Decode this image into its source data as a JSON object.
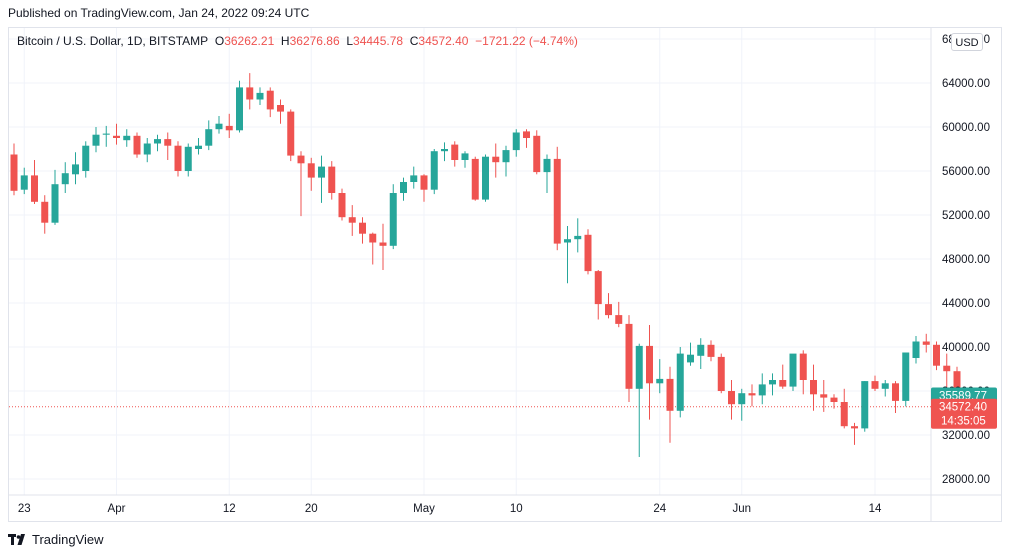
{
  "header": {
    "published": "Published on TradingView.com, Jan 24, 2022 09:24 UTC"
  },
  "legend": {
    "symbol": "Bitcoin / U.S. Dollar, 1D, BITSTAMP",
    "o_label": "O",
    "o": "36262.21",
    "h_label": "H",
    "h": "36276.86",
    "l_label": "L",
    "l": "34445.78",
    "c_label": "C",
    "c": "34572.40",
    "change": "−1721.22 (−4.74%)"
  },
  "currency_button": "USD",
  "footer": {
    "brand": "TradingView"
  },
  "colors": {
    "up": "#26a69a",
    "down": "#ef5350",
    "grid": "#f0f3fa",
    "price_line": "#ef5350"
  },
  "chart_data": {
    "type": "candlestick",
    "ylim": [
      25600,
      68000
    ],
    "y_ticks": [
      28000,
      32000,
      36000,
      40000,
      44000,
      48000,
      52000,
      56000,
      60000,
      64000,
      68000
    ],
    "y_tick_labels": [
      "28000.00",
      "32000.00",
      "36000.00",
      "40000.00",
      "44000.00",
      "48000.00",
      "52000.00",
      "56000.00",
      "60000.00",
      "64000.00",
      "68000.00"
    ],
    "x_tick_labels": [
      {
        "label": "23",
        "index": 1
      },
      {
        "label": "Apr",
        "index": 10
      },
      {
        "label": "12",
        "index": 21
      },
      {
        "label": "20",
        "index": 29
      },
      {
        "label": "May",
        "index": 40
      },
      {
        "label": "10",
        "index": 49
      },
      {
        "label": "24",
        "index": 63
      },
      {
        "label": "Jun",
        "index": 71
      },
      {
        "label": "14",
        "index": 84
      }
    ],
    "price_tags": [
      {
        "value": 35589.77,
        "label": "35589.77",
        "color": "#26a69a"
      },
      {
        "value": 34572.4,
        "label": "34572.40",
        "sub": "14:35:05",
        "color": "#ef5350"
      }
    ],
    "candles": [
      {
        "o": 57500,
        "h": 58500,
        "l": 53800,
        "c": 54200
      },
      {
        "o": 54300,
        "h": 56300,
        "l": 53900,
        "c": 55600
      },
      {
        "o": 55600,
        "h": 57000,
        "l": 53000,
        "c": 53200
      },
      {
        "o": 53200,
        "h": 53800,
        "l": 50300,
        "c": 51300
      },
      {
        "o": 51300,
        "h": 56100,
        "l": 51100,
        "c": 54800
      },
      {
        "o": 54800,
        "h": 56800,
        "l": 54000,
        "c": 55800
      },
      {
        "o": 55700,
        "h": 57700,
        "l": 54800,
        "c": 56600
      },
      {
        "o": 56000,
        "h": 58700,
        "l": 55400,
        "c": 58300
      },
      {
        "o": 58300,
        "h": 60000,
        "l": 57700,
        "c": 59300
      },
      {
        "o": 59300,
        "h": 60100,
        "l": 58200,
        "c": 59400
      },
      {
        "o": 59200,
        "h": 60300,
        "l": 58400,
        "c": 59000
      },
      {
        "o": 58800,
        "h": 59800,
        "l": 58200,
        "c": 59200
      },
      {
        "o": 59200,
        "h": 59500,
        "l": 57200,
        "c": 57500
      },
      {
        "o": 57500,
        "h": 59000,
        "l": 56800,
        "c": 58500
      },
      {
        "o": 58500,
        "h": 59300,
        "l": 57800,
        "c": 58900
      },
      {
        "o": 58900,
        "h": 59500,
        "l": 57000,
        "c": 58300
      },
      {
        "o": 58300,
        "h": 58700,
        "l": 55500,
        "c": 56000
      },
      {
        "o": 56000,
        "h": 58500,
        "l": 55500,
        "c": 58200
      },
      {
        "o": 58000,
        "h": 59000,
        "l": 57500,
        "c": 58300
      },
      {
        "o": 58300,
        "h": 60600,
        "l": 57900,
        "c": 59800
      },
      {
        "o": 59800,
        "h": 61000,
        "l": 59400,
        "c": 60300
      },
      {
        "o": 60100,
        "h": 61200,
        "l": 59000,
        "c": 59700
      },
      {
        "o": 59700,
        "h": 64200,
        "l": 59500,
        "c": 63600
      },
      {
        "o": 63600,
        "h": 64900,
        "l": 61600,
        "c": 62500
      },
      {
        "o": 62500,
        "h": 63600,
        "l": 62000,
        "c": 63100
      },
      {
        "o": 63300,
        "h": 63600,
        "l": 60900,
        "c": 61600
      },
      {
        "o": 62000,
        "h": 62500,
        "l": 60300,
        "c": 61400
      },
      {
        "o": 61400,
        "h": 61600,
        "l": 56900,
        "c": 57400
      },
      {
        "o": 57400,
        "h": 57800,
        "l": 51900,
        "c": 56700
      },
      {
        "o": 56700,
        "h": 57200,
        "l": 54200,
        "c": 55400
      },
      {
        "o": 55400,
        "h": 57400,
        "l": 53100,
        "c": 56400
      },
      {
        "o": 56400,
        "h": 56900,
        "l": 53400,
        "c": 54000
      },
      {
        "o": 54000,
        "h": 54400,
        "l": 51500,
        "c": 51800
      },
      {
        "o": 51800,
        "h": 52900,
        "l": 50100,
        "c": 51300
      },
      {
        "o": 51300,
        "h": 51800,
        "l": 49400,
        "c": 50300
      },
      {
        "o": 50300,
        "h": 50400,
        "l": 47500,
        "c": 49500
      },
      {
        "o": 49500,
        "h": 51200,
        "l": 47000,
        "c": 49200
      },
      {
        "o": 49200,
        "h": 54800,
        "l": 48900,
        "c": 54000
      },
      {
        "o": 54000,
        "h": 55400,
        "l": 53300,
        "c": 55000
      },
      {
        "o": 55000,
        "h": 56400,
        "l": 54400,
        "c": 55600
      },
      {
        "o": 55600,
        "h": 55700,
        "l": 53200,
        "c": 54300
      },
      {
        "o": 54300,
        "h": 58000,
        "l": 53900,
        "c": 57800
      },
      {
        "o": 57800,
        "h": 58600,
        "l": 56900,
        "c": 58000
      },
      {
        "o": 58400,
        "h": 58700,
        "l": 56400,
        "c": 57000
      },
      {
        "o": 57000,
        "h": 57800,
        "l": 56300,
        "c": 57600
      },
      {
        "o": 57100,
        "h": 57300,
        "l": 53300,
        "c": 53400
      },
      {
        "o": 53400,
        "h": 57500,
        "l": 53200,
        "c": 57300
      },
      {
        "o": 57300,
        "h": 58500,
        "l": 55400,
        "c": 56800
      },
      {
        "o": 56800,
        "h": 58300,
        "l": 55500,
        "c": 57900
      },
      {
        "o": 57900,
        "h": 59800,
        "l": 57300,
        "c": 59500
      },
      {
        "o": 59600,
        "h": 59800,
        "l": 58100,
        "c": 59000
      },
      {
        "o": 59200,
        "h": 59700,
        "l": 55700,
        "c": 55900
      },
      {
        "o": 55900,
        "h": 57500,
        "l": 54000,
        "c": 57100
      },
      {
        "o": 57100,
        "h": 58200,
        "l": 48800,
        "c": 49400
      },
      {
        "o": 49500,
        "h": 51000,
        "l": 45800,
        "c": 49800
      },
      {
        "o": 49800,
        "h": 51700,
        "l": 48600,
        "c": 50100
      },
      {
        "o": 50200,
        "h": 50700,
        "l": 46600,
        "c": 46900
      },
      {
        "o": 46900,
        "h": 47000,
        "l": 42500,
        "c": 43900
      },
      {
        "o": 43900,
        "h": 44900,
        "l": 42600,
        "c": 42900
      },
      {
        "o": 42900,
        "h": 44100,
        "l": 41800,
        "c": 42100
      },
      {
        "o": 42100,
        "h": 42900,
        "l": 35000,
        "c": 36200
      },
      {
        "o": 36200,
        "h": 40300,
        "l": 30000,
        "c": 40100
      },
      {
        "o": 40100,
        "h": 42000,
        "l": 33400,
        "c": 36700
      },
      {
        "o": 36700,
        "h": 38900,
        "l": 35800,
        "c": 37100
      },
      {
        "o": 37100,
        "h": 38200,
        "l": 31300,
        "c": 34200
      },
      {
        "o": 34200,
        "h": 40000,
        "l": 33600,
        "c": 39400
      },
      {
        "o": 38600,
        "h": 40400,
        "l": 38300,
        "c": 39300
      },
      {
        "o": 39200,
        "h": 40800,
        "l": 38000,
        "c": 40200
      },
      {
        "o": 40200,
        "h": 40600,
        "l": 38700,
        "c": 39100
      },
      {
        "o": 39100,
        "h": 39400,
        "l": 35800,
        "c": 36000
      },
      {
        "o": 36000,
        "h": 37000,
        "l": 33400,
        "c": 34800
      },
      {
        "o": 34800,
        "h": 36200,
        "l": 33300,
        "c": 35800
      },
      {
        "o": 35800,
        "h": 36600,
        "l": 34600,
        "c": 35600
      },
      {
        "o": 35600,
        "h": 37600,
        "l": 34800,
        "c": 36600
      },
      {
        "o": 36600,
        "h": 37600,
        "l": 35600,
        "c": 37000
      },
      {
        "o": 37000,
        "h": 38400,
        "l": 36200,
        "c": 36400
      },
      {
        "o": 36400,
        "h": 39000,
        "l": 36000,
        "c": 39400
      },
      {
        "o": 39400,
        "h": 39700,
        "l": 35700,
        "c": 37000
      },
      {
        "o": 37000,
        "h": 38400,
        "l": 34200,
        "c": 35700
      },
      {
        "o": 35700,
        "h": 37000,
        "l": 34100,
        "c": 35400
      },
      {
        "o": 35400,
        "h": 35700,
        "l": 34400,
        "c": 35000
      },
      {
        "o": 35000,
        "h": 36200,
        "l": 32600,
        "c": 32800
      },
      {
        "o": 32800,
        "h": 33100,
        "l": 31100,
        "c": 32600
      },
      {
        "o": 32600,
        "h": 36900,
        "l": 32300,
        "c": 36900
      },
      {
        "o": 36900,
        "h": 37400,
        "l": 36000,
        "c": 36200
      },
      {
        "o": 36200,
        "h": 37000,
        "l": 35500,
        "c": 36700
      },
      {
        "o": 36700,
        "h": 36900,
        "l": 34000,
        "c": 35100
      },
      {
        "o": 35100,
        "h": 39400,
        "l": 34600,
        "c": 39500
      },
      {
        "o": 39000,
        "h": 41000,
        "l": 38500,
        "c": 40500
      },
      {
        "o": 40500,
        "h": 41200,
        "l": 39500,
        "c": 40200
      },
      {
        "o": 40200,
        "h": 40500,
        "l": 37900,
        "c": 38300
      },
      {
        "o": 38300,
        "h": 39400,
        "l": 36100,
        "c": 37800
      },
      {
        "o": 37800,
        "h": 38200,
        "l": 35300,
        "c": 35600
      },
      {
        "o": 35600,
        "h": 35800,
        "l": 34400,
        "c": 35200
      },
      {
        "o": 36300,
        "h": 36300,
        "l": 34400,
        "c": 34600
      }
    ]
  }
}
